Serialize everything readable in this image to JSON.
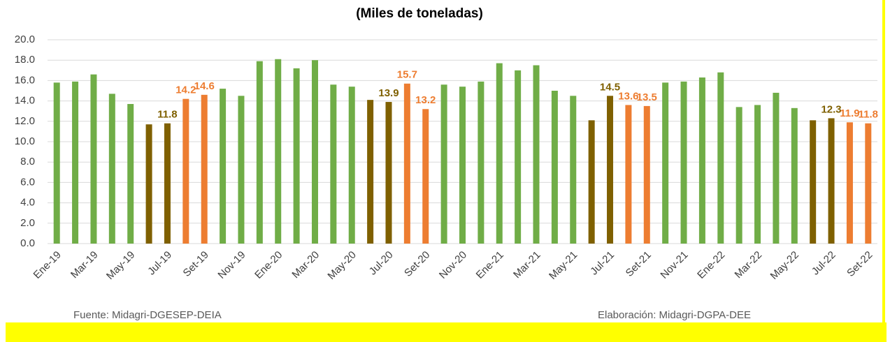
{
  "chart_data": {
    "type": "bar",
    "title": "(Miles de toneladas)",
    "categories": [
      "Ene-19",
      null,
      "Mar-19",
      null,
      "May-19",
      null,
      "Jul-19",
      null,
      "Set-19",
      null,
      "Nov-19",
      null,
      "Ene-20",
      null,
      "Mar-20",
      null,
      "May-20",
      null,
      "Jul-20",
      null,
      "Set-20",
      null,
      "Nov-20",
      null,
      "Ene-21",
      null,
      "Mar-21",
      null,
      "May-21",
      null,
      "Jul-21",
      null,
      "Set-21",
      null,
      "Nov-21",
      null,
      "Ene-22",
      null,
      "Mar-22",
      null,
      "May-22",
      null,
      "Jul-22",
      null,
      "Set-22"
    ],
    "values": [
      15.8,
      15.9,
      16.6,
      14.7,
      13.7,
      11.7,
      11.8,
      14.2,
      14.6,
      15.2,
      14.5,
      17.9,
      18.1,
      17.2,
      18.0,
      15.6,
      15.4,
      14.1,
      13.9,
      15.7,
      13.2,
      15.6,
      15.4,
      15.9,
      17.7,
      17.0,
      17.5,
      15.0,
      14.5,
      12.1,
      14.5,
      13.6,
      13.5,
      15.8,
      15.9,
      16.3,
      16.8,
      13.4,
      13.6,
      14.8,
      13.3,
      12.1,
      12.3,
      11.9,
      11.8
    ],
    "value_labels": [
      null,
      null,
      null,
      null,
      null,
      null,
      "11.8",
      "14.2",
      "14.6",
      null,
      null,
      null,
      null,
      null,
      null,
      null,
      null,
      null,
      "13.9",
      "15.7",
      "13.2",
      null,
      null,
      null,
      null,
      null,
      null,
      null,
      null,
      null,
      "14.5",
      "13.6",
      "13.5",
      null,
      null,
      null,
      null,
      null,
      null,
      null,
      null,
      null,
      "12.3",
      "11.9",
      "11.8"
    ],
    "colors": [
      "#70ad47",
      "#70ad47",
      "#70ad47",
      "#70ad47",
      "#70ad47",
      "#7f6000",
      "#7f6000",
      "#ed7d31",
      "#ed7d31",
      "#70ad47",
      "#70ad47",
      "#70ad47",
      "#70ad47",
      "#70ad47",
      "#70ad47",
      "#70ad47",
      "#70ad47",
      "#7f6000",
      "#7f6000",
      "#ed7d31",
      "#ed7d31",
      "#70ad47",
      "#70ad47",
      "#70ad47",
      "#70ad47",
      "#70ad47",
      "#70ad47",
      "#70ad47",
      "#70ad47",
      "#7f6000",
      "#7f6000",
      "#ed7d31",
      "#ed7d31",
      "#70ad47",
      "#70ad47",
      "#70ad47",
      "#70ad47",
      "#70ad47",
      "#70ad47",
      "#70ad47",
      "#70ad47",
      "#7f6000",
      "#7f6000",
      "#ed7d31",
      "#ed7d31"
    ],
    "ylim": [
      0,
      20
    ],
    "yticks": [
      {
        "value": 0,
        "label": "0.0"
      },
      {
        "value": 2,
        "label": "2.0"
      },
      {
        "value": 4,
        "label": "4.0"
      },
      {
        "value": 6,
        "label": "6.0"
      },
      {
        "value": 8,
        "label": "8.0"
      },
      {
        "value": 10,
        "label": "10.0"
      },
      {
        "value": 12,
        "label": "12.0"
      },
      {
        "value": 14,
        "label": "14.0"
      },
      {
        "value": 16,
        "label": "16.0"
      },
      {
        "value": 18,
        "label": "18.0"
      },
      {
        "value": 20,
        "label": "20.0"
      }
    ],
    "grid": true,
    "source": "Fuente: Midagri-DGESEP-DEIA",
    "credit": "Elaboración: Midagri-DGPA-DEE"
  }
}
